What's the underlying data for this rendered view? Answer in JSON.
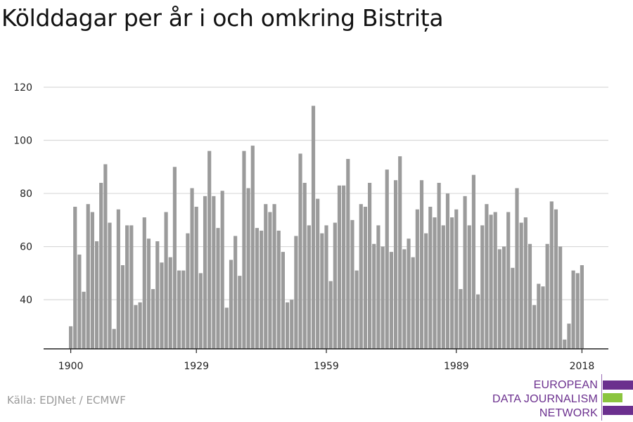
{
  "title": "Kölddagar per år i och omkring Bistrița",
  "source": "Källa: EDJNet / ECMWF",
  "logo": {
    "lines": [
      "EUROPEAN",
      "DATA JOURNALISM",
      "NETWORK"
    ],
    "colors": {
      "purple": "#6b2f8e",
      "green": "#8bc53f"
    }
  },
  "colors": {
    "bar": "#9b9b9b",
    "grid": "#d9d9d9",
    "axis": "#222222",
    "text": "#222222"
  },
  "chart_data": {
    "type": "bar",
    "title": "Kölddagar per år i och omkring Bistrița",
    "xlabel": "",
    "ylabel": "",
    "x_start": 1900,
    "x_end": 2018,
    "xticks": [
      1900,
      1929,
      1959,
      1989,
      2018
    ],
    "yticks": [
      40,
      60,
      80,
      100,
      120
    ],
    "ylim": [
      21.5,
      120
    ],
    "grid": true,
    "values": [
      30,
      75,
      57,
      43,
      76,
      73,
      62,
      84,
      91,
      69,
      29,
      74,
      53,
      68,
      68,
      38,
      39,
      71,
      63,
      44,
      62,
      54,
      73,
      56,
      90,
      51,
      51,
      65,
      82,
      75,
      50,
      79,
      96,
      79,
      67,
      81,
      37,
      55,
      64,
      49,
      96,
      82,
      98,
      67,
      66,
      76,
      73,
      76,
      66,
      58,
      39,
      40,
      64,
      95,
      84,
      68,
      113,
      78,
      65,
      68,
      47,
      69,
      83,
      83,
      93,
      70,
      51,
      76,
      75,
      84,
      61,
      68,
      60,
      89,
      58,
      85,
      94,
      59,
      63,
      56,
      74,
      85,
      65,
      75,
      71,
      84,
      68,
      80,
      71,
      74,
      44,
      79,
      68,
      87,
      42,
      68,
      76,
      72,
      73,
      59,
      60,
      73,
      52,
      82,
      69,
      71,
      61,
      38,
      46,
      45,
      61,
      77,
      74,
      60,
      25,
      31,
      51,
      50,
      53
    ]
  }
}
